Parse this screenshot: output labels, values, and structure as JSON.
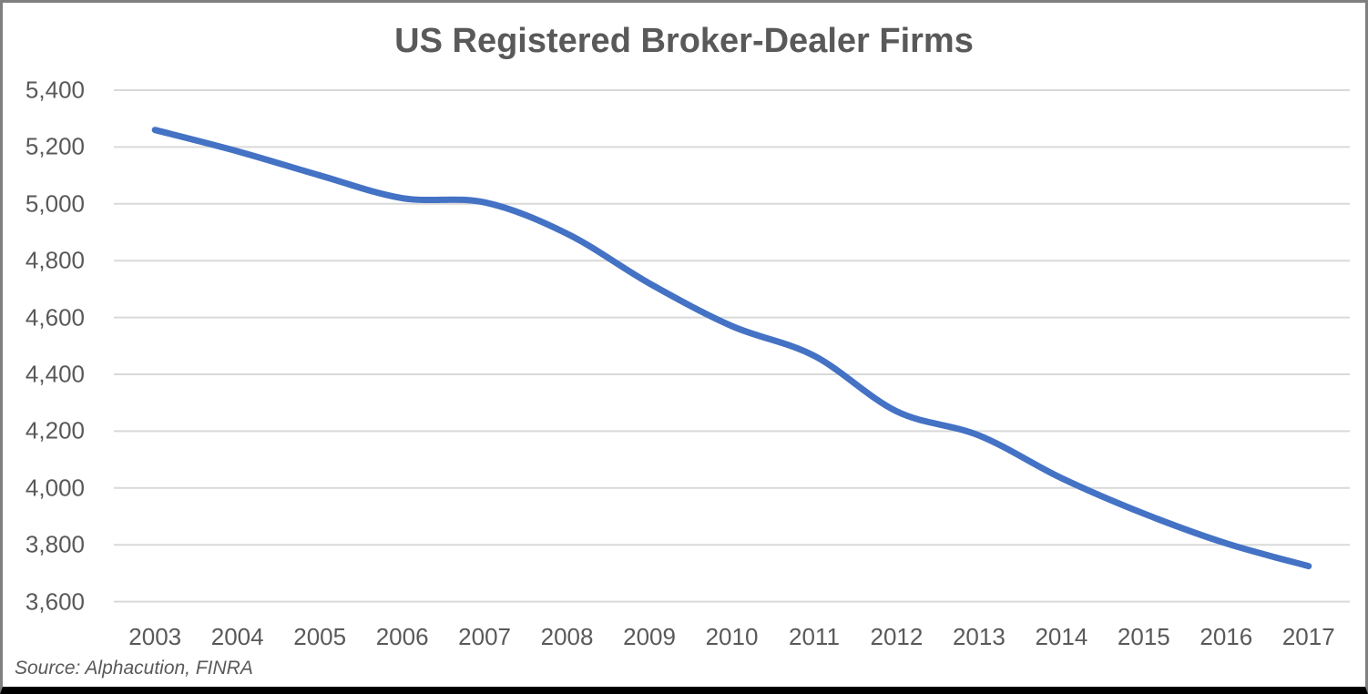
{
  "chart_data": {
    "type": "line",
    "title": "US Registered Broker-Dealer Firms",
    "source_note": "Source: Alphacution, FINRA",
    "categories": [
      "2003",
      "2004",
      "2005",
      "2006",
      "2007",
      "2008",
      "2009",
      "2010",
      "2011",
      "2012",
      "2013",
      "2014",
      "2015",
      "2016",
      "2017"
    ],
    "values": [
      5260,
      5185,
      5100,
      5020,
      5005,
      4895,
      4720,
      4570,
      4465,
      4270,
      4185,
      4035,
      3910,
      3805,
      3725
    ],
    "xlabel": "",
    "ylabel": "",
    "ylim": [
      3600,
      5400
    ],
    "ytick_step": 200,
    "yticks": [
      3600,
      3800,
      4000,
      4200,
      4400,
      4600,
      4800,
      5000,
      5200,
      5400
    ],
    "ytick_labels": [
      "3,600",
      "3,800",
      "4,000",
      "4,200",
      "4,400",
      "4,600",
      "4,800",
      "5,000",
      "5,200",
      "5,400"
    ],
    "grid": "horizontal",
    "legend": "none",
    "smoothed_line": true,
    "colors": {
      "line": "#4472C4",
      "gridline": "#D9D9D9",
      "text": "#595959",
      "frame_border": "#7F7F7F",
      "frame_bottom": "#000000"
    }
  }
}
